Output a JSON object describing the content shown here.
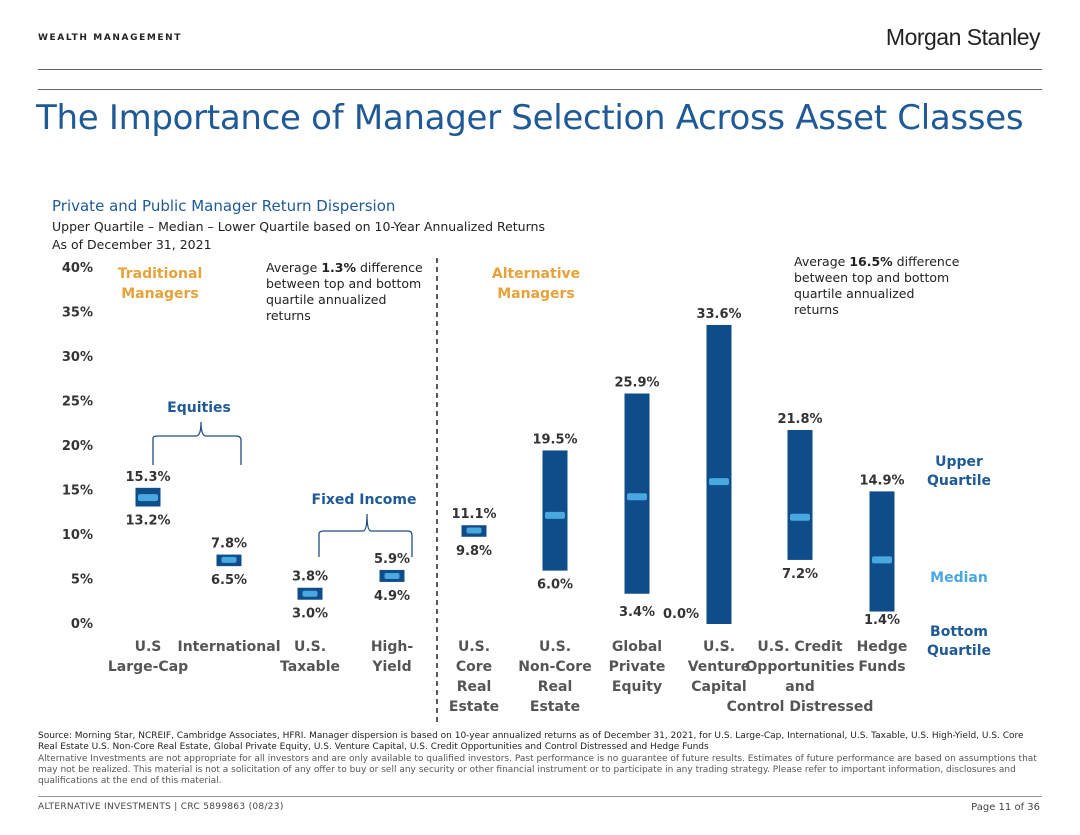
{
  "header": {
    "section_label": "WEALTH MANAGEMENT",
    "brand": "Morgan Stanley"
  },
  "page_title": "The Importance of Manager Selection Across Asset Classes",
  "chart_header": {
    "title": "Private and Public Manager Return Dispersion",
    "subtitle": "Upper Quartile – Median – Lower Quartile based on 10-Year Annualized Returns",
    "as_of": "As of December 31, 2021"
  },
  "annotations": {
    "traditional_line1": "Traditional",
    "traditional_line2": "Managers",
    "alternative_line1": "Alternative",
    "alternative_line2": "Managers",
    "equities": "Equities",
    "fixed_income": "Fixed Income",
    "trad_note": [
      "Average ",
      "1.3%",
      " difference",
      "between top and bottom",
      "quartile annualized",
      "returns"
    ],
    "alt_note": [
      "Average ",
      "16.5%",
      " difference",
      "between top and bottom",
      "quartile annualized",
      "returns"
    ],
    "legend_upper": [
      "Upper",
      "Quartile"
    ],
    "legend_median": "Median",
    "legend_bottom": [
      "Bottom",
      "Quartile"
    ]
  },
  "colors": {
    "bar": "#0f4c8a",
    "median": "#4aa8e0",
    "title_blue": "#1f5a96",
    "orange": "#e8a23a"
  },
  "chart_data": {
    "type": "floating-bar",
    "ylim": [
      0,
      40
    ],
    "yticks": [
      "0%",
      "5%",
      "10%",
      "15%",
      "20%",
      "25%",
      "30%",
      "35%",
      "40%"
    ],
    "ytick_values": [
      0,
      5,
      10,
      15,
      20,
      25,
      30,
      35,
      40
    ],
    "categories": [
      {
        "label": [
          "U.S",
          "Large-Cap"
        ],
        "upper": 15.3,
        "lower": 13.2,
        "median": 14.2,
        "upper_label": "15.3%",
        "lower_label": "13.2%"
      },
      {
        "label": [
          "International"
        ],
        "upper": 7.8,
        "lower": 6.5,
        "median": 7.2,
        "upper_label": "7.8%",
        "lower_label": "6.5%"
      },
      {
        "label": [
          "U.S.",
          "Taxable"
        ],
        "upper": 3.8,
        "lower": 3.0,
        "median": 3.4,
        "upper_label": "3.8%",
        "lower_label": "3.0%"
      },
      {
        "label": [
          "High-",
          "Yield"
        ],
        "upper": 5.9,
        "lower": 4.9,
        "median": 5.4,
        "upper_label": "5.9%",
        "lower_label": "4.9%"
      },
      {
        "label": [
          "U.S.",
          "Core",
          "Real",
          "Estate"
        ],
        "upper": 11.1,
        "lower": 9.8,
        "median": 10.5,
        "upper_label": "11.1%",
        "lower_label": "9.8%"
      },
      {
        "label": [
          "U.S.",
          "Non-Core",
          "Real",
          "Estate"
        ],
        "upper": 19.5,
        "lower": 6.0,
        "median": 12.2,
        "upper_label": "19.5%",
        "lower_label": "6.0%"
      },
      {
        "label": [
          "Global",
          "Private",
          "Equity"
        ],
        "upper": 25.9,
        "lower": 3.4,
        "median": 14.3,
        "upper_label": "25.9%",
        "lower_label": "3.4%"
      },
      {
        "label": [
          "U.S.",
          "Venture",
          "Capital"
        ],
        "upper": 33.6,
        "lower": 0.0,
        "median": 16.0,
        "upper_label": "33.6%",
        "lower_label": "0.0%"
      },
      {
        "label": [
          "U.S. Credit",
          "Opportunities",
          "and",
          "Control Distressed"
        ],
        "upper": 21.8,
        "lower": 7.2,
        "median": 12.0,
        "upper_label": "21.8%",
        "lower_label": "7.2%"
      },
      {
        "label": [
          "Hedge",
          "Funds"
        ],
        "upper": 14.9,
        "lower": 1.4,
        "median": 7.2,
        "upper_label": "14.9%",
        "lower_label": "1.4%"
      }
    ]
  },
  "footnotes": {
    "source": "Source: Morning Star, NCREIF, Cambridge Associates, HFRI. Manager dispersion is based on 10-year annualized returns as of December 31, 2021, for U.S. Large-Cap, International, U.S. Taxable, U.S. High-Yield, U.S. Core Real Estate U.S. Non-Core Real Estate, Global Private Equity, U.S. Venture Capital, U.S. Credit Opportunities and Control Distressed and Hedge Funds",
    "disclaimer": "Alternative Investments are not appropriate for all investors and are only available to qualified investors. Past performance is no guarantee of future results. Estimates of future performance are based on assumptions that may not be realized. This material is not a solicitation of any offer to buy or sell any security or other financial instrument or to participate in any trading strategy. Please refer to important information, disclosures and qualifications at the end of this material."
  },
  "footer": {
    "left": "ALTERNATIVE INVESTMENTS  |  CRC 5899863 (08/23)",
    "page": "Page 11 of 36"
  }
}
